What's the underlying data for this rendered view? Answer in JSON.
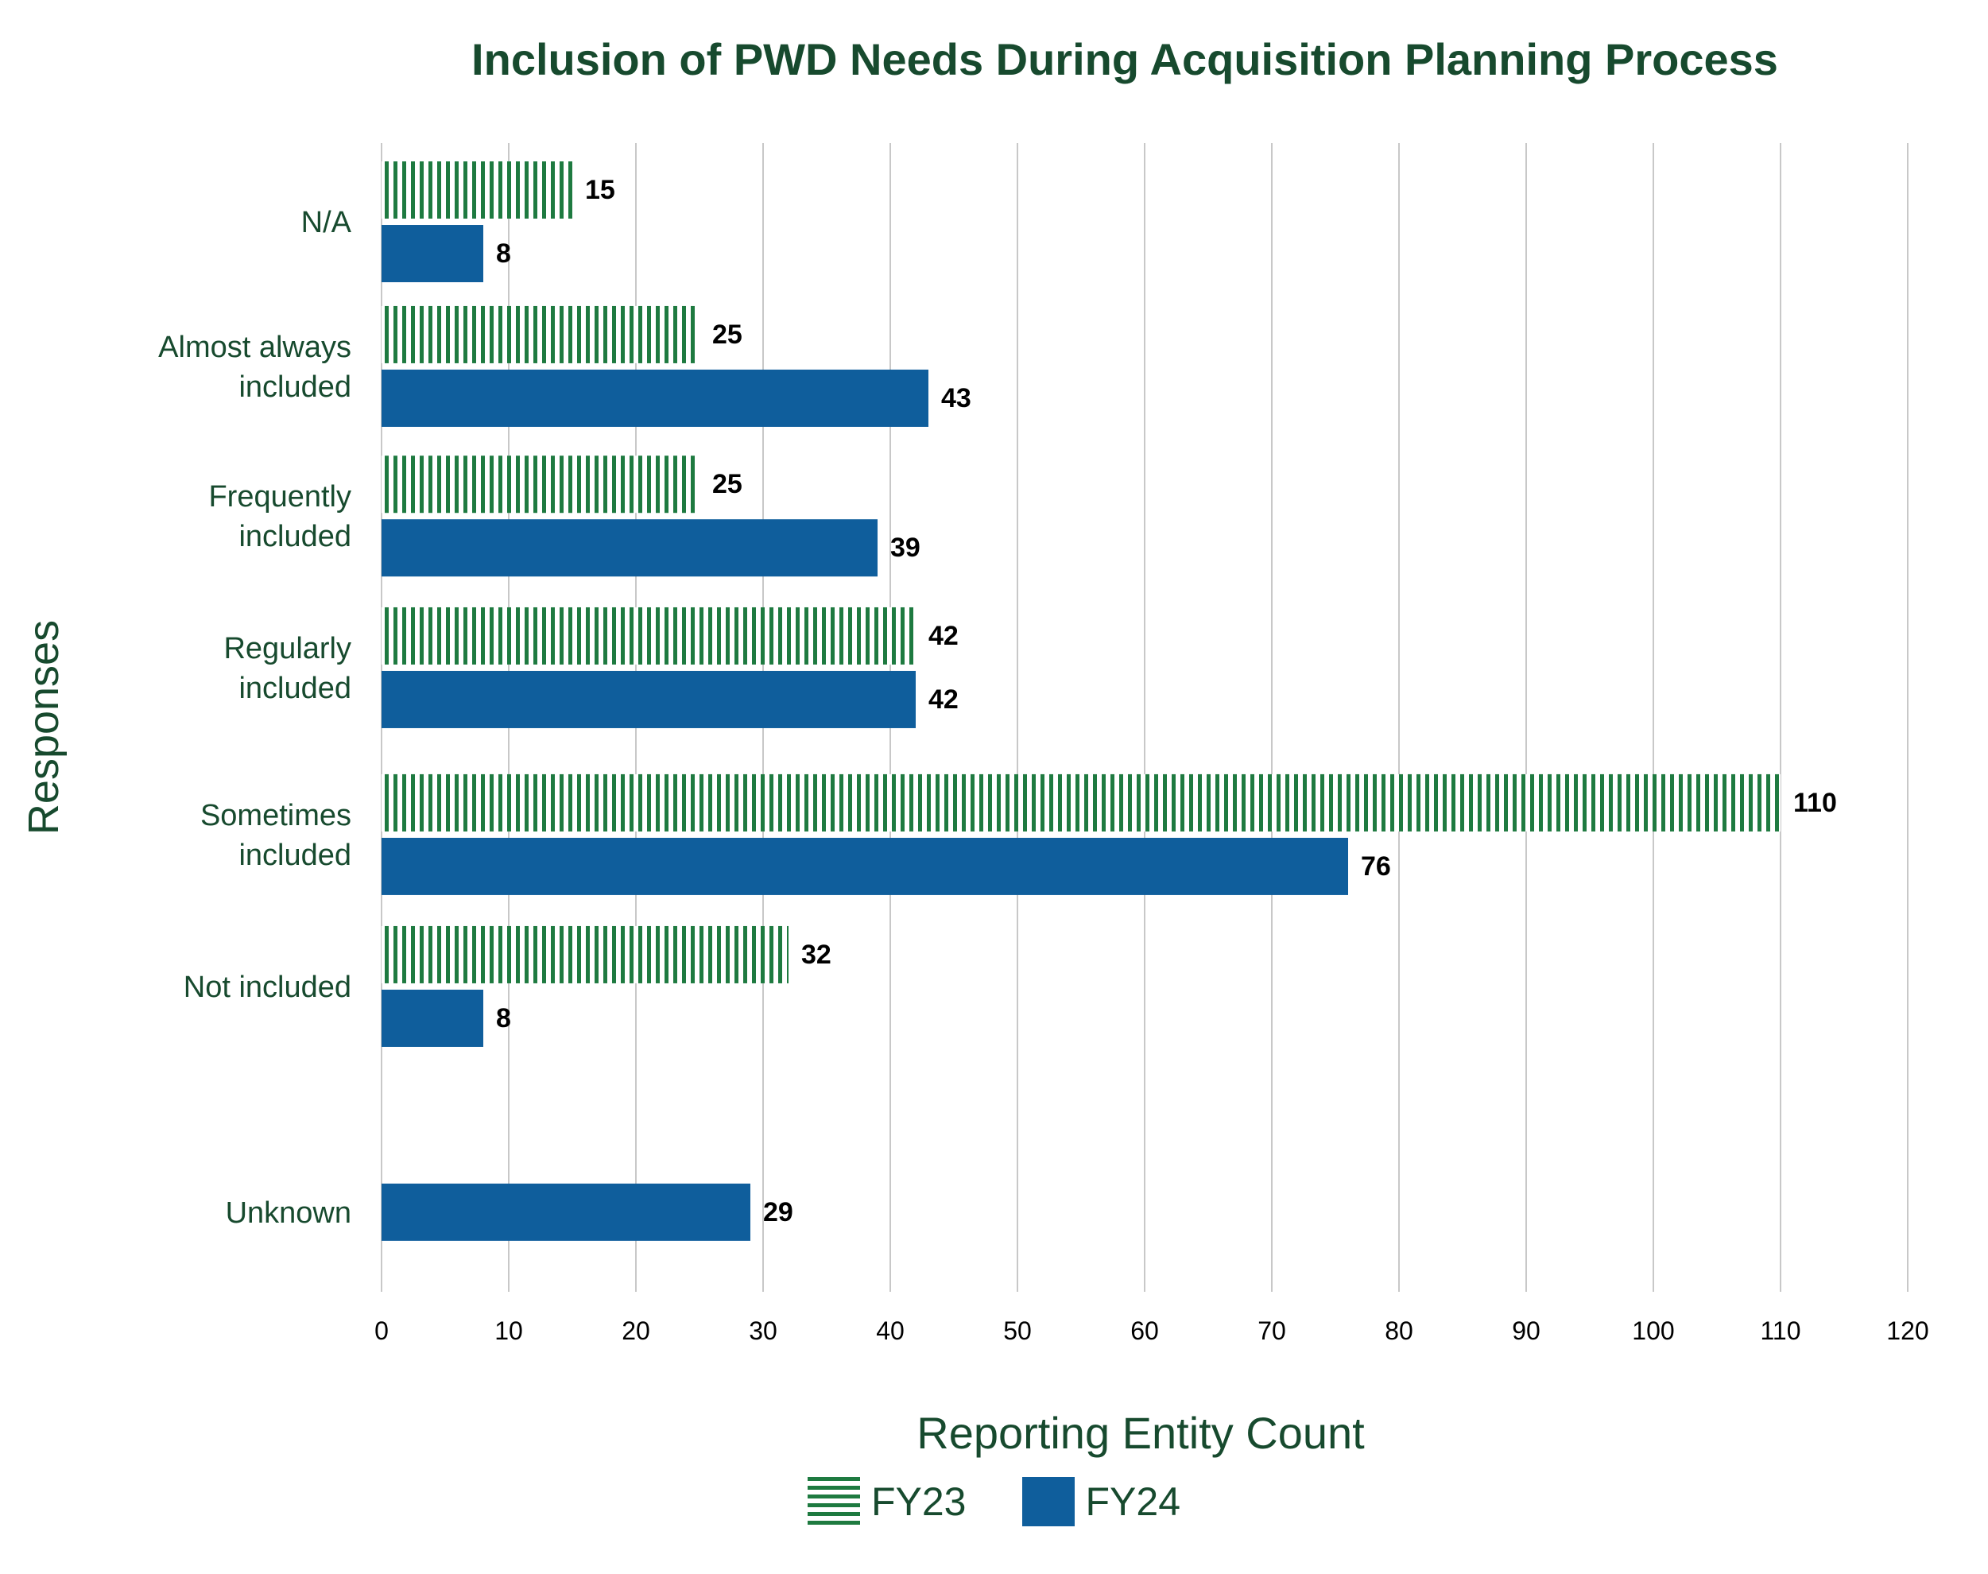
{
  "chart_data": {
    "type": "bar",
    "orientation": "horizontal",
    "title": "Inclusion of PWD Needs During Acquisition Planning Process",
    "xlabel": "Reporting Entity Count",
    "ylabel": "Responses",
    "categories": [
      "N/A",
      "Almost always included",
      "Frequently included",
      "Regularly included",
      "Sometimes included",
      "Not included",
      "Unknown"
    ],
    "category_lines": [
      [
        "N/A"
      ],
      [
        "Almost always",
        "included"
      ],
      [
        "Frequently",
        "included"
      ],
      [
        "Regularly",
        "included"
      ],
      [
        "Sometimes",
        "included"
      ],
      [
        "Not included"
      ],
      [
        "Unknown"
      ]
    ],
    "series": [
      {
        "name": "FY23",
        "values": [
          15,
          25,
          25,
          42,
          110,
          32,
          null
        ],
        "color": "#1e7a40",
        "pattern": "vertical-stripes"
      },
      {
        "name": "FY24",
        "values": [
          8,
          43,
          39,
          42,
          76,
          8,
          29
        ],
        "color": "#0f5e9c",
        "pattern": "solid"
      }
    ],
    "data_labels": [
      [
        "15",
        "25",
        "25",
        "42",
        "110",
        "32",
        null
      ],
      [
        "8",
        "43",
        "39",
        "42",
        "76",
        "8",
        "29"
      ]
    ],
    "xlim": [
      0,
      120
    ],
    "xticks": [
      0,
      10,
      20,
      30,
      40,
      50,
      60,
      70,
      80,
      90,
      100,
      110,
      120
    ],
    "grid": "vertical",
    "legend_position": "bottom"
  },
  "colors": {
    "title": "#174a2e",
    "fy23": "#1e7a40",
    "fy24": "#0f5e9c",
    "grid": "#c8c8c8",
    "text": "#000000"
  }
}
